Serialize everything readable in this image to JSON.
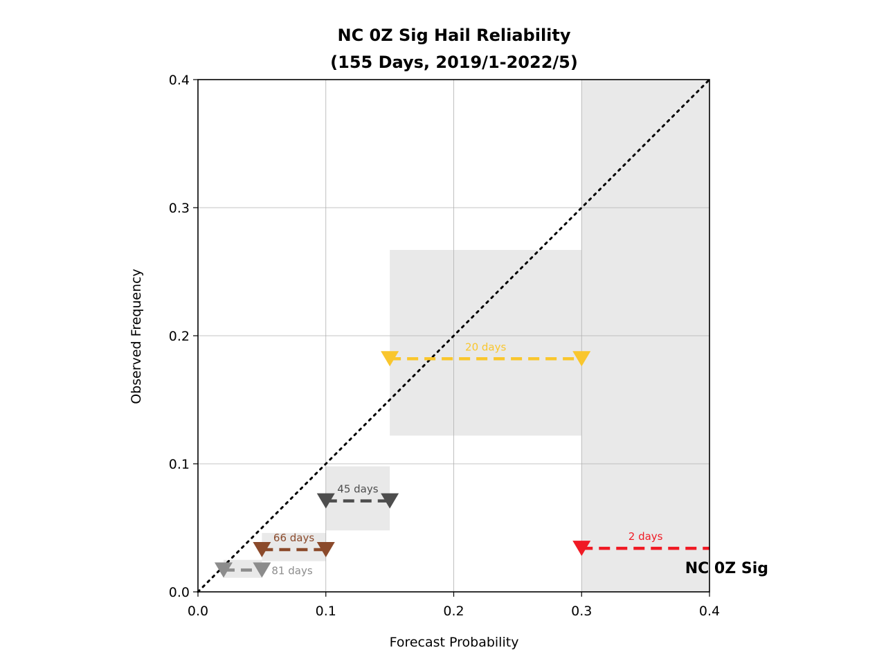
{
  "chart_data": {
    "type": "reliability",
    "title_line1": "NC 0Z Sig Hail Reliability",
    "title_line2": "(155 Days, 2019/1-2022/5)",
    "xlabel": "Forecast Probability",
    "ylabel": "Observed Frequency",
    "xlim": [
      0,
      0.4
    ],
    "ylim": [
      0,
      0.4
    ],
    "xticks": [
      0.0,
      0.1,
      0.2,
      0.3,
      0.4
    ],
    "yticks": [
      0.0,
      0.1,
      0.2,
      0.3,
      0.4
    ],
    "xtick_labels": [
      "0.0",
      "0.1",
      "0.2",
      "0.3",
      "0.4"
    ],
    "ytick_labels": [
      "0.0",
      "0.1",
      "0.2",
      "0.3",
      "0.4"
    ],
    "grid": true,
    "diagonal": "dotted black line y = x",
    "tag": "NC 0Z Sig",
    "bins": [
      {
        "x_start": 0.02,
        "x_end": 0.05,
        "observed": 0.017,
        "ci_low": 0.011,
        "ci_high": 0.025,
        "label": "81 days",
        "color": "#8c8c8c"
      },
      {
        "x_start": 0.05,
        "x_end": 0.1,
        "observed": 0.033,
        "ci_low": 0.024,
        "ci_high": 0.046,
        "label": "66 days",
        "color": "#8b4a2b"
      },
      {
        "x_start": 0.1,
        "x_end": 0.15,
        "observed": 0.071,
        "ci_low": 0.048,
        "ci_high": 0.098,
        "label": "45 days",
        "color": "#4d4d4d"
      },
      {
        "x_start": 0.15,
        "x_end": 0.3,
        "observed": 0.182,
        "ci_low": 0.122,
        "ci_high": 0.267,
        "label": "20 days",
        "color": "#f9c62d"
      },
      {
        "x_start": 0.3,
        "x_end": 0.4,
        "observed": 0.034,
        "ci_low": 0.0,
        "ci_high": 0.4,
        "label": "2 days",
        "color": "#f01a24"
      }
    ]
  }
}
